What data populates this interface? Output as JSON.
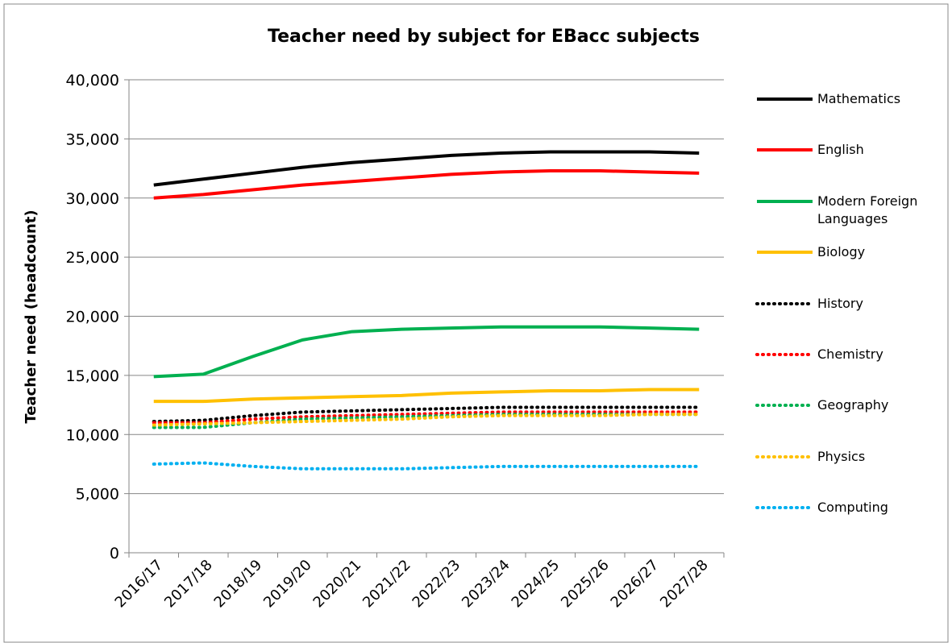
{
  "chart_data": {
    "type": "line",
    "title": "Teacher need by subject for EBacc subjects",
    "y_label": "Teacher need (headcount)",
    "categories": [
      "2016/17",
      "2017/18",
      "2018/19",
      "2019/20",
      "2020/21",
      "2021/22",
      "2022/23",
      "2023/24",
      "2024/25",
      "2025/26",
      "2026/27",
      "2027/28"
    ],
    "ylim": [
      0,
      40000
    ],
    "yticks": [
      0,
      {
        "value": 5000,
        "label": "5,000"
      },
      {
        "value": 10000,
        "label": "10,000"
      },
      {
        "value": 15000,
        "label": "15,000"
      },
      {
        "value": 20000,
        "label": "20,000"
      },
      {
        "value": 25000,
        "label": "25,000"
      },
      {
        "value": 30000,
        "label": "30,000"
      },
      {
        "value": 35000,
        "label": "35,000"
      },
      {
        "value": 40000,
        "label": "40,000"
      }
    ],
    "grid": true,
    "legend": "right",
    "series": [
      {
        "name": "Mathematics",
        "color": "#000000",
        "style": "solid",
        "values": [
          31100,
          31600,
          32100,
          32600,
          33000,
          33300,
          33600,
          33800,
          33900,
          33900,
          33900,
          33800
        ]
      },
      {
        "name": "English",
        "color": "#ff0000",
        "style": "solid",
        "values": [
          30000,
          30300,
          30700,
          31100,
          31400,
          31700,
          32000,
          32200,
          32300,
          32300,
          32200,
          32100
        ]
      },
      {
        "name": "Modern Foreign Languages",
        "color": "#00b050",
        "style": "solid",
        "values": [
          14900,
          15100,
          16600,
          18000,
          18700,
          18900,
          19000,
          19100,
          19100,
          19100,
          19000,
          18900
        ]
      },
      {
        "name": "Biology",
        "color": "#ffc000",
        "style": "solid",
        "values": [
          12800,
          12800,
          13000,
          13100,
          13200,
          13300,
          13500,
          13600,
          13700,
          13700,
          13800,
          13800
        ]
      },
      {
        "name": "History",
        "color": "#000000",
        "style": "dotted",
        "values": [
          11100,
          11200,
          11600,
          11900,
          12000,
          12100,
          12200,
          12300,
          12300,
          12300,
          12300,
          12300
        ]
      },
      {
        "name": "Chemistry",
        "color": "#ff0000",
        "style": "dotted",
        "values": [
          11000,
          11000,
          11300,
          11500,
          11600,
          11700,
          11800,
          11900,
          11900,
          11900,
          11900,
          11900
        ]
      },
      {
        "name": "Geography",
        "color": "#00b050",
        "style": "dotted",
        "values": [
          10600,
          10600,
          11000,
          11300,
          11400,
          11500,
          11600,
          11700,
          11700,
          11700,
          11700,
          11700
        ]
      },
      {
        "name": "Physics",
        "color": "#ffc000",
        "style": "dotted",
        "values": [
          10800,
          10900,
          11000,
          11100,
          11200,
          11300,
          11500,
          11600,
          11600,
          11600,
          11700,
          11700
        ]
      },
      {
        "name": "Computing",
        "color": "#00b0f0",
        "style": "dotted",
        "values": [
          7500,
          7600,
          7300,
          7100,
          7100,
          7100,
          7200,
          7300,
          7300,
          7300,
          7300,
          7300
        ]
      }
    ]
  }
}
